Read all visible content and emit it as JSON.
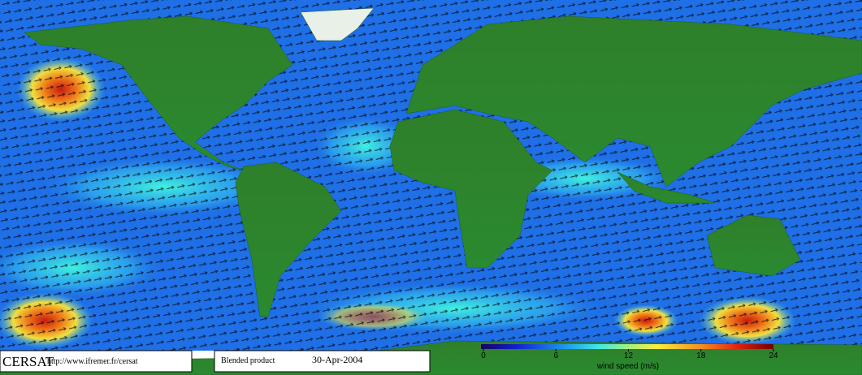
{
  "logo": "CERSAT",
  "url": "http://www.ifremer.fr/cersat",
  "product": "Blended product",
  "date": "30-Apr-2004",
  "colorbar": {
    "title": "wind speed (m/s)",
    "lim": [
      0,
      24
    ],
    "ticks": [
      0,
      6,
      12,
      18,
      24
    ]
  }
}
